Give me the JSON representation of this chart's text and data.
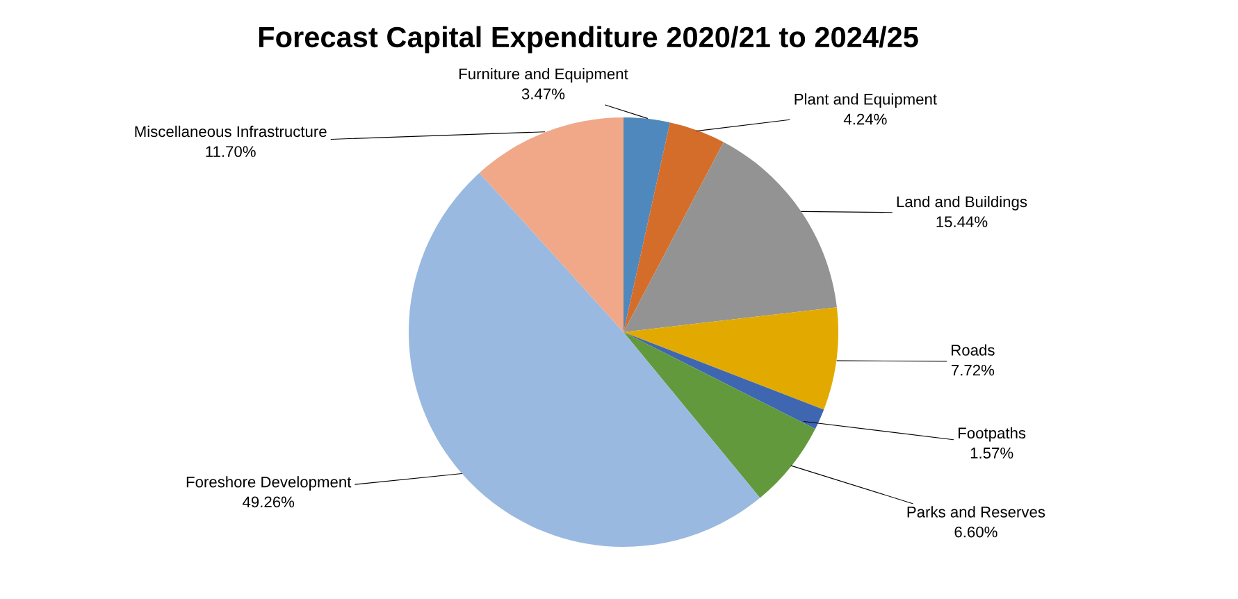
{
  "chart_data": {
    "type": "pie",
    "title": "Forecast Capital Expenditure 2020/21 to 2024/25",
    "categories": [
      "Furniture and Equipment",
      "Plant and Equipment",
      "Land and Buildings",
      "Roads",
      "Footpaths",
      "Parks and Reserves",
      "Foreshore Development",
      "Miscellaneous Infrastructure"
    ],
    "values": [
      3.47,
      4.24,
      15.44,
      7.72,
      1.57,
      6.6,
      49.26,
      11.7
    ],
    "value_labels": [
      "3.47%",
      "4.24%",
      "15.44%",
      "7.72%",
      "1.57%",
      "6.60%",
      "49.26%",
      "11.70%"
    ],
    "colors": [
      "#4f88bd",
      "#d46d2a",
      "#939393",
      "#e2aa00",
      "#3f67b1",
      "#63993d",
      "#9ab9e0",
      "#f0a889"
    ],
    "legend": false
  }
}
